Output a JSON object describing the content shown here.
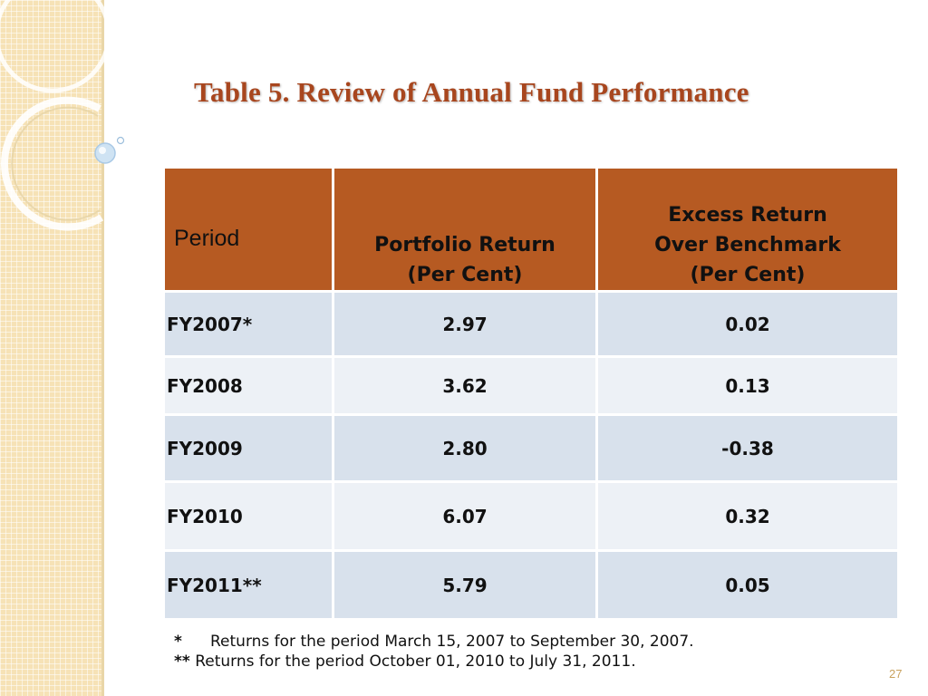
{
  "title": "Table 5. Review of Annual Fund Performance",
  "table": {
    "headers": {
      "period": "Period",
      "portfolio_line1": "Portfolio Return",
      "portfolio_line2": "(Per Cent)",
      "excess_line1": "Excess Return",
      "excess_line2": "Over Benchmark",
      "excess_line3": "(Per Cent)"
    },
    "rows": [
      {
        "period": "FY2007*",
        "portfolio": "2.97",
        "excess": "0.02"
      },
      {
        "period": "FY2008",
        "portfolio": "3.62",
        "excess": "0.13"
      },
      {
        "period": "FY2009",
        "portfolio": "2.80",
        "excess": "-0.38"
      },
      {
        "period": "FY2010",
        "portfolio": "6.07",
        "excess": "0.32"
      },
      {
        "period": "FY2011**",
        "portfolio": "5.79",
        "excess": "0.05"
      }
    ]
  },
  "footnotes": {
    "note1_marker": "*",
    "note1_text": "Returns for the period March 15, 2007 to September 30, 2007.",
    "note2_marker": "**",
    "note2_text": "Returns for the period October 01, 2010 to July 31, 2011."
  },
  "page_number": "27",
  "colors": {
    "title": "#a8461e",
    "header_bg": "#b65a22",
    "row_dark": "#d8e1ec",
    "row_light": "#edf1f6",
    "side_strip": "#f6e2b6"
  }
}
